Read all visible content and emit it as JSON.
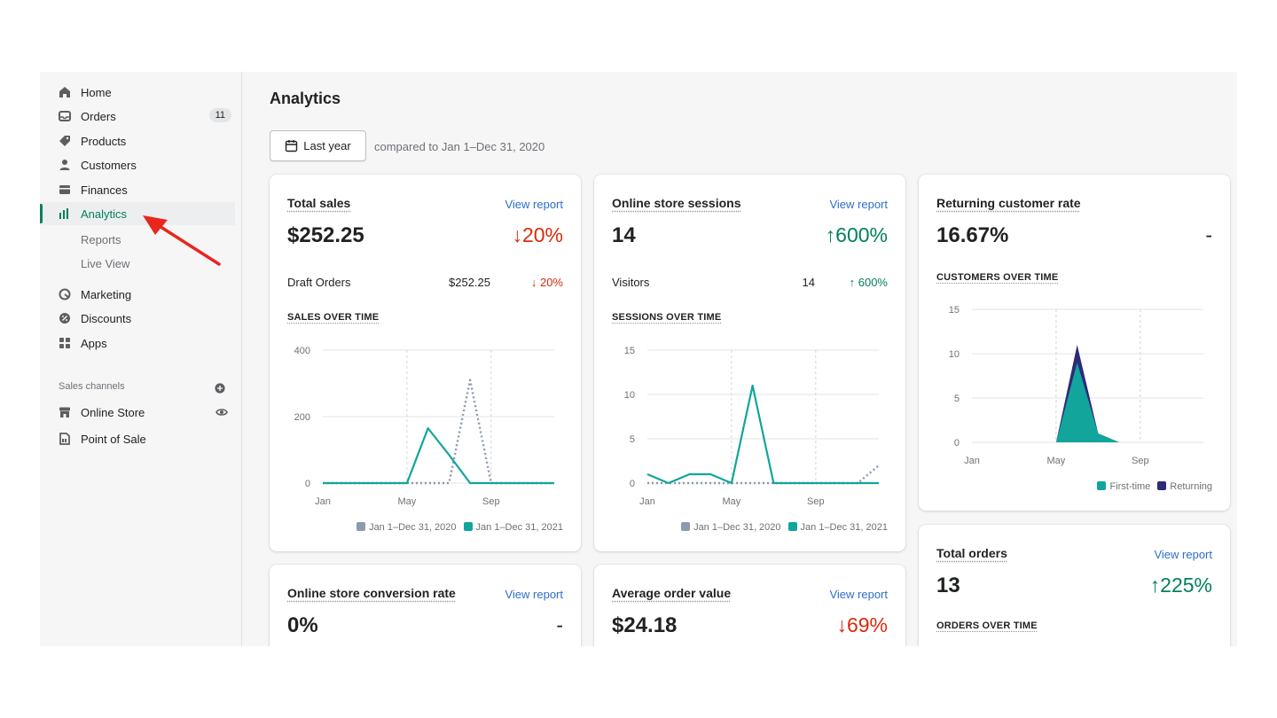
{
  "sidebar": {
    "items": [
      {
        "label": "Home",
        "icon": "home-icon"
      },
      {
        "label": "Orders",
        "icon": "orders-icon",
        "badge": "11"
      },
      {
        "label": "Products",
        "icon": "tag-icon"
      },
      {
        "label": "Customers",
        "icon": "person-icon"
      },
      {
        "label": "Finances",
        "icon": "finances-icon"
      },
      {
        "label": "Analytics",
        "icon": "bar-chart-icon",
        "active": true
      },
      {
        "label": "Reports"
      },
      {
        "label": "Live View"
      },
      {
        "label": "Marketing",
        "icon": "marketing-icon"
      },
      {
        "label": "Discounts",
        "icon": "discount-icon"
      },
      {
        "label": "Apps",
        "icon": "apps-icon"
      }
    ],
    "sales_channels_label": "Sales channels",
    "channels": [
      {
        "label": "Online Store",
        "icon": "store-icon"
      },
      {
        "label": "Point of Sale",
        "icon": "pos-icon"
      }
    ]
  },
  "main": {
    "title": "Analytics",
    "date_button": "Last year",
    "compare_text": "compared to Jan 1–Dec 31, 2020"
  },
  "colors": {
    "accent": "#008060",
    "down": "#d72c0d",
    "link": "#2c6ecb",
    "series_current": "#11a59c",
    "series_prev": "#8c9aae",
    "returning": "#2e2a78"
  },
  "cards": {
    "total_sales": {
      "title": "Total sales",
      "link": "View report",
      "value": "$252.25",
      "change": "↓20%",
      "sub": {
        "label": "Draft Orders",
        "value": "$252.25",
        "change": "↓ 20%"
      },
      "chart_title": "SALES OVER TIME",
      "legend": [
        "Jan 1–Dec 31, 2020",
        "Jan 1–Dec 31, 2021"
      ]
    },
    "sessions": {
      "title": "Online store sessions",
      "link": "View report",
      "value": "14",
      "change": "↑600%",
      "sub": {
        "label": "Visitors",
        "value": "14",
        "change": "↑ 600%"
      },
      "chart_title": "SESSIONS OVER TIME",
      "legend": [
        "Jan 1–Dec 31, 2020",
        "Jan 1–Dec 31, 2021"
      ]
    },
    "returning": {
      "title": "Returning customer rate",
      "value": "16.67%",
      "change": "-",
      "chart_title": "CUSTOMERS OVER TIME",
      "legend": [
        "First-time",
        "Returning"
      ]
    },
    "total_orders": {
      "title": "Total orders",
      "link": "View report",
      "value": "13",
      "change": "↑225%",
      "chart_title": "ORDERS OVER TIME"
    },
    "conversion": {
      "title": "Online store conversion rate",
      "link": "View report",
      "value": "0%",
      "change": "-"
    },
    "aov": {
      "title": "Average order value",
      "link": "View report",
      "value": "$24.18",
      "change": "↓69%"
    }
  },
  "chart_data": [
    {
      "type": "line",
      "title": "SALES OVER TIME",
      "x_ticks": [
        "Jan",
        "May",
        "Sep"
      ],
      "y_ticks": [
        0,
        200,
        400
      ],
      "ylim": [
        0,
        400
      ],
      "x": [
        1,
        2,
        3,
        4,
        5,
        6,
        7,
        8,
        9,
        10,
        11,
        12
      ],
      "series": [
        {
          "name": "Jan 1–Dec 31, 2020",
          "style": "dotted",
          "values": [
            0,
            0,
            0,
            0,
            0,
            0,
            0,
            310,
            0,
            0,
            0,
            0
          ]
        },
        {
          "name": "Jan 1–Dec 31, 2021",
          "style": "solid",
          "values": [
            0,
            0,
            0,
            0,
            0,
            165,
            85,
            0,
            0,
            0,
            0,
            0
          ]
        }
      ]
    },
    {
      "type": "line",
      "title": "SESSIONS OVER TIME",
      "x_ticks": [
        "Jan",
        "May",
        "Sep"
      ],
      "y_ticks": [
        0,
        5,
        10,
        15
      ],
      "ylim": [
        0,
        15
      ],
      "x": [
        1,
        2,
        3,
        4,
        5,
        6,
        7,
        8,
        9,
        10,
        11,
        12
      ],
      "series": [
        {
          "name": "Jan 1–Dec 31, 2020",
          "style": "dotted",
          "values": [
            0,
            0,
            0,
            0,
            0,
            0,
            0,
            0,
            0,
            0,
            0,
            2
          ]
        },
        {
          "name": "Jan 1–Dec 31, 2021",
          "style": "solid",
          "values": [
            1,
            0,
            1,
            1,
            0,
            11,
            0,
            0,
            0,
            0,
            0,
            0
          ]
        }
      ]
    },
    {
      "type": "area",
      "title": "CUSTOMERS OVER TIME",
      "x_ticks": [
        "Jan",
        "May",
        "Sep"
      ],
      "y_ticks": [
        0,
        5,
        10,
        15
      ],
      "ylim": [
        0,
        15
      ],
      "x": [
        1,
        2,
        3,
        4,
        5,
        6,
        7,
        8,
        9,
        10,
        11,
        12
      ],
      "series": [
        {
          "name": "First-time",
          "values": [
            0,
            0,
            0,
            0,
            0,
            9,
            1,
            0,
            0,
            0,
            0,
            0
          ]
        },
        {
          "name": "Returning",
          "values": [
            0,
            0,
            0,
            0,
            0,
            2,
            0,
            0,
            0,
            0,
            0,
            0
          ]
        }
      ]
    }
  ]
}
